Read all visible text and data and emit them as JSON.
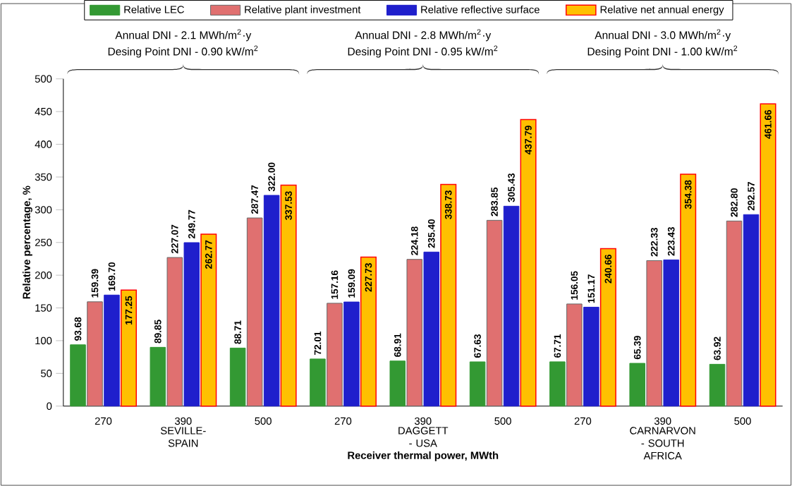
{
  "chart_data": {
    "type": "bar",
    "xlabel": "Receiver thermal power, MWth",
    "ylabel": "Relative percentage, %",
    "categories": [
      "270",
      "390",
      "500",
      "270",
      "390",
      "500",
      "270",
      "390",
      "500"
    ],
    "series": [
      {
        "name": "Relative LEC",
        "color": "#339933",
        "values": [
          93.68,
          89.85,
          88.71,
          72.01,
          68.91,
          67.63,
          67.71,
          65.39,
          63.92
        ],
        "value_labels": [
          "93.68",
          "89.85",
          "88.71",
          "72.01",
          "68.91",
          "67.63",
          "67.71",
          "65.39",
          "63.92"
        ]
      },
      {
        "name": "Relative plant investment",
        "color": "#e07070",
        "values": [
          159.39,
          227.07,
          287.47,
          157.16,
          224.18,
          283.85,
          156.05,
          222.33,
          282.8
        ],
        "value_labels": [
          "159.39",
          "227.07",
          "287.47",
          "157.16",
          "224.18",
          "283.85",
          "156.05",
          "222.33",
          "282.80"
        ]
      },
      {
        "name": "Relative reflective surface",
        "color": "#1f1fcc",
        "values": [
          169.7,
          249.77,
          322.0,
          159.09,
          235.4,
          305.43,
          151.17,
          223.43,
          292.57
        ],
        "value_labels": [
          "169.70",
          "249.77",
          "322.00",
          "159.09",
          "235.40",
          "305.43",
          "151.17",
          "223.43",
          "292.57"
        ]
      },
      {
        "name": "Relative net annual energy",
        "color": "#ffc000",
        "values": [
          177.25,
          262.77,
          337.53,
          227.73,
          338.73,
          437.79,
          240.66,
          354.38,
          461.66
        ],
        "value_labels": [
          "177.25",
          "262.77",
          "337.53",
          "227.73",
          "338.73",
          "437.79",
          "240.66",
          "354.38",
          "461.66"
        ]
      }
    ],
    "ylim": [
      0,
      500
    ],
    "yticks": [
      0,
      50,
      100,
      150,
      200,
      250,
      300,
      350,
      400,
      450,
      500
    ],
    "legend": "top",
    "annotations": [
      "Annual DNI - 2.1 MWh/m$^{2}$·y",
      "Desing Point DNI - 0.90 kW/m$^{2}$",
      "SEVILLE-SPAIN",
      "Annual DNI - 2.8 MWh/m$^{2}$·y",
      "Desing Point DNI - 0.95 kW/m$^{2}$",
      "DAGGETT - USA",
      "Annual DNI - 3.0 MWh/m$^{2}$·y",
      "Desing Point DNI - 1.00 kW/m$^{2}$",
      "CARNARVON - SOUTH AFRICA"
    ]
  }
}
